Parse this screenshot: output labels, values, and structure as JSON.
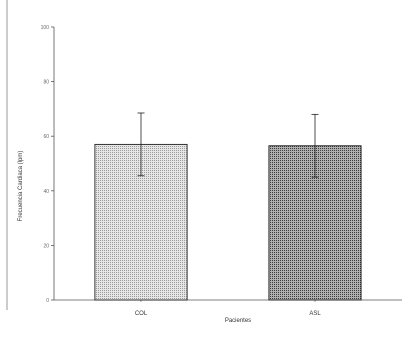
{
  "chart_data": {
    "type": "bar",
    "title": "",
    "xlabel": "Pacientes",
    "ylabel": "Frecuencia Cardiaca (lpm)",
    "ylim": [
      0,
      100
    ],
    "yticks": [
      0,
      20,
      40,
      60,
      80,
      100
    ],
    "categories": [
      "COL",
      "ASL"
    ],
    "values": [
      57,
      56.5
    ],
    "errors": [
      11.5,
      11.5
    ],
    "bar_colors": [
      "#d9d9d9",
      "#8a8a8a"
    ],
    "grid": false,
    "legend": "none"
  }
}
